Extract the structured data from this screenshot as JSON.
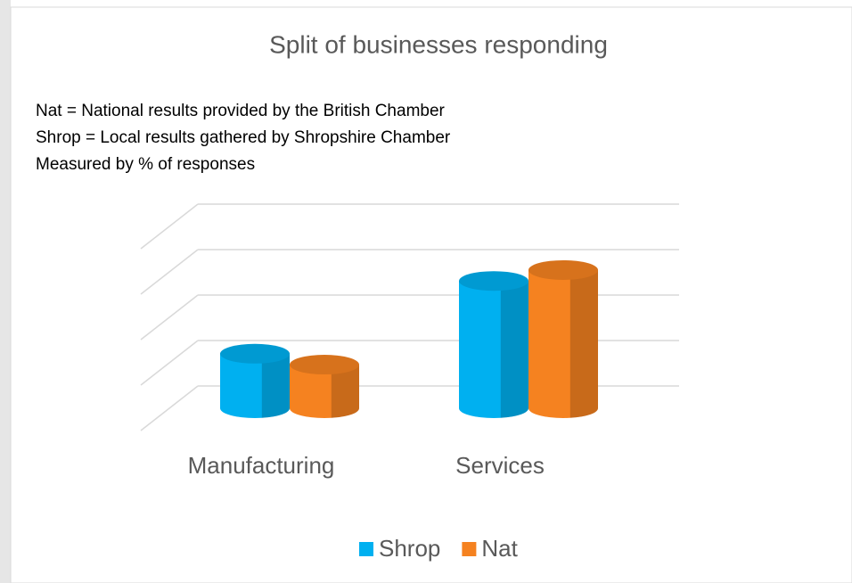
{
  "chart_data": {
    "type": "bar3d",
    "title": "Split of businesses responding",
    "notes": [
      "Nat = National results provided by the British Chamber",
      "Shrop = Local results gathered by Shropshire Chamber",
      "Measured by % of responses"
    ],
    "categories": [
      "Manufacturing",
      "Services"
    ],
    "series": [
      {
        "name": "Shrop",
        "color": "#00b0f0",
        "values": [
          30,
          70
        ]
      },
      {
        "name": "Nat",
        "color": "#f58220",
        "values": [
          24,
          76
        ]
      }
    ],
    "ylim": [
      0,
      100
    ],
    "yticks": [
      0,
      25,
      50,
      75,
      100
    ],
    "grid": true,
    "legend": "bottom"
  }
}
